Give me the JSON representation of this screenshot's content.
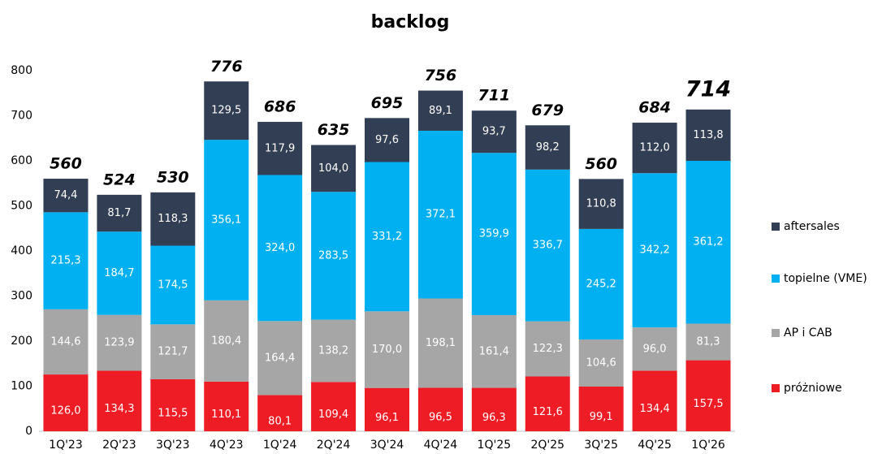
{
  "chart_data": {
    "type": "stacked_bar",
    "title": "backlog",
    "categories": [
      "1Q'23",
      "2Q'23",
      "3Q'23",
      "4Q'23",
      "1Q'24",
      "2Q'24",
      "3Q'24",
      "4Q'24",
      "1Q'25",
      "2Q'25",
      "3Q'25",
      "4Q'25",
      "1Q'26"
    ],
    "series": [
      {
        "name": "próżniowe",
        "color": "#ee1c25",
        "values": [
          126.0,
          134.3,
          115.5,
          110.1,
          80.1,
          109.4,
          96.1,
          96.5,
          96.3,
          121.6,
          99.1,
          134.4,
          157.5
        ],
        "value_labels": [
          "126,0",
          "134,3",
          "115,5",
          "110,1",
          "80,1",
          "109,4",
          "96,1",
          "96,5",
          "96,3",
          "121,6",
          "99,1",
          "134,4",
          "157,5"
        ]
      },
      {
        "name": "AP i CAB",
        "color": "#a6a6a6",
        "values": [
          144.6,
          123.9,
          121.7,
          180.4,
          164.4,
          138.2,
          170.0,
          198.1,
          161.4,
          122.3,
          104.6,
          96.0,
          81.3
        ],
        "value_labels": [
          "144,6",
          "123,9",
          "121,7",
          "180,4",
          "164,4",
          "138,2",
          "170,0",
          "198,1",
          "161,4",
          "122,3",
          "104,6",
          "96,0",
          "81,3"
        ]
      },
      {
        "name": "topielne (VME)",
        "color": "#00b0f0",
        "values": [
          215.3,
          184.7,
          174.5,
          356.1,
          324.0,
          283.5,
          331.2,
          372.1,
          359.9,
          336.7,
          245.2,
          342.2,
          361.2
        ],
        "value_labels": [
          "215,3",
          "184,7",
          "174,5",
          "356,1",
          "324,0",
          "283,5",
          "331,2",
          "372,1",
          "359,9",
          "336,7",
          "245,2",
          "342,2",
          "361,2"
        ]
      },
      {
        "name": "aftersales",
        "color": "#323e53",
        "values": [
          74.4,
          81.7,
          118.3,
          129.5,
          117.9,
          104.0,
          97.6,
          89.1,
          93.7,
          98.2,
          110.8,
          112.0,
          113.8
        ],
        "value_labels": [
          "74,4",
          "81,7",
          "118,3",
          "129,5",
          "117,9",
          "104,0",
          "97,6",
          "89,1",
          "93,7",
          "98,2",
          "110,8",
          "112,0",
          "113,8"
        ]
      }
    ],
    "totals": [
      560,
      524,
      530,
      776,
      686,
      635,
      695,
      756,
      711,
      679,
      560,
      684,
      714
    ],
    "ylim": [
      0,
      800
    ],
    "yticks": [
      0,
      100,
      200,
      300,
      400,
      500,
      600,
      700,
      800
    ],
    "grid": false,
    "legend": "right"
  }
}
